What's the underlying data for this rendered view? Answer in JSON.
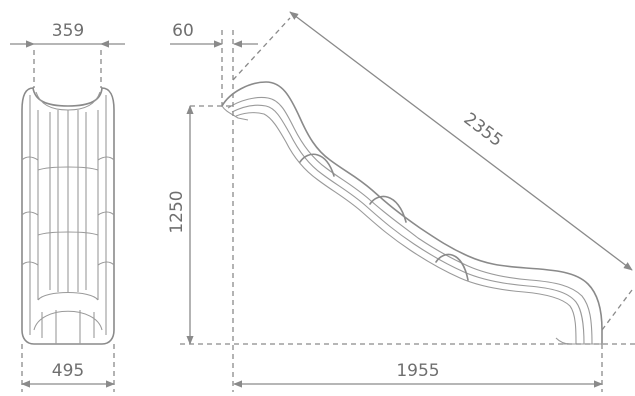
{
  "dimensions": {
    "front_top_width": "359",
    "front_bottom_width": "495",
    "offset": "60",
    "height": "1250",
    "length": "2355",
    "base_length": "1955"
  },
  "colors": {
    "line": "#8a8a8a",
    "text": "#6f6f6f",
    "background": "#ffffff"
  }
}
